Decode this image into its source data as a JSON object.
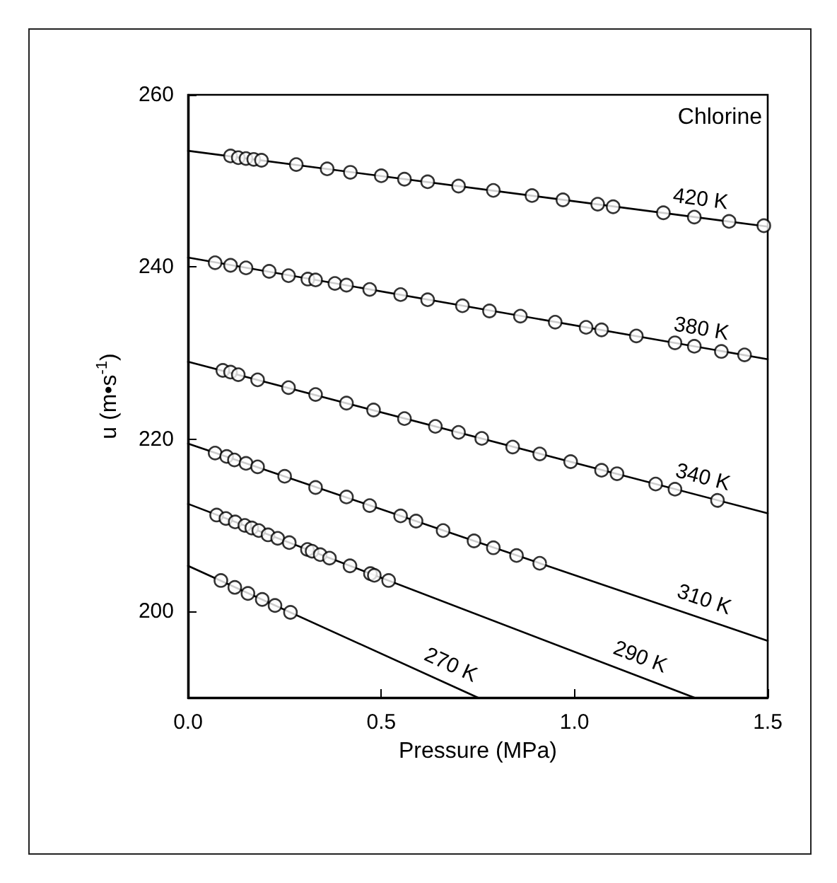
{
  "chart_data": {
    "type": "scatter",
    "xlabel": "Pressure (MPa)",
    "ylabel": "u (m•s$^{-1}$)",
    "xlim": [
      0,
      1.5
    ],
    "ylim": [
      190,
      260
    ],
    "xticks": [
      {
        "value": 0,
        "label": "0.0"
      },
      {
        "value": 0.5,
        "label": "0.5"
      },
      {
        "value": 1,
        "label": "1.0"
      },
      {
        "value": 1.5,
        "label": "1.5"
      }
    ],
    "yticks": [
      200,
      220,
      240,
      260
    ],
    "grid": false,
    "marker": "circle",
    "annotations": [
      "Chlorine"
    ],
    "series": [
      {
        "type": "line",
        "name": "420 K",
        "marker": "none",
        "color": "#000000",
        "x": [
          0,
          1.5
        ],
        "values": [
          253.5,
          244.7
        ]
      },
      {
        "type": "line",
        "name": "380 K",
        "marker": "none",
        "color": "#000000",
        "x": [
          0,
          1.5
        ],
        "values": [
          241.1,
          229.3
        ]
      },
      {
        "type": "line",
        "name": "340 K",
        "marker": "none",
        "color": "#000000",
        "x": [
          0,
          1.5
        ],
        "values": [
          229.0,
          211.4
        ]
      },
      {
        "type": "line",
        "name": "310 K",
        "marker": "none",
        "color": "#000000",
        "x": [
          0,
          1.5
        ],
        "values": [
          219.5,
          196.6
        ]
      },
      {
        "type": "line",
        "name": "290 K",
        "marker": "none",
        "color": "#000000",
        "x": [
          0,
          1.31
        ],
        "values": [
          212.5,
          190
        ]
      },
      {
        "type": "line",
        "name": "270 K",
        "marker": "none",
        "color": "#000000",
        "x": [
          0,
          0.75
        ],
        "values": [
          205.3,
          190
        ]
      },
      {
        "color": "#000000",
        "x": [
          0.11,
          0.13,
          0.15,
          0.17,
          0.19,
          0.28,
          0.36,
          0.42,
          0.5,
          0.56,
          0.62,
          0.7,
          0.79,
          0.89,
          0.97,
          1.06,
          1.1,
          1.23,
          1.31,
          1.4,
          1.49
        ],
        "values": [
          252.9,
          252.7,
          252.6,
          252.5,
          252.4,
          251.9,
          251.4,
          251.0,
          250.6,
          250.2,
          249.9,
          249.4,
          248.9,
          248.3,
          247.8,
          247.3,
          247.0,
          246.3,
          245.8,
          245.3,
          244.8
        ]
      },
      {
        "color": "#000000",
        "x": [
          0.07,
          0.11,
          0.15,
          0.21,
          0.26,
          0.31,
          0.33,
          0.38,
          0.41,
          0.47,
          0.55,
          0.62,
          0.71,
          0.78,
          0.86,
          0.95,
          1.03,
          1.07,
          1.16,
          1.26,
          1.31,
          1.38,
          1.44
        ],
        "values": [
          240.5,
          240.2,
          239.9,
          239.5,
          239.0,
          238.6,
          238.5,
          238.1,
          237.9,
          237.4,
          236.8,
          236.2,
          235.5,
          234.9,
          234.3,
          233.6,
          233.0,
          232.7,
          232.0,
          231.2,
          230.8,
          230.2,
          229.8
        ]
      },
      {
        "color": "#000000",
        "x": [
          0.09,
          0.11,
          0.13,
          0.18,
          0.26,
          0.33,
          0.41,
          0.48,
          0.56,
          0.64,
          0.7,
          0.76,
          0.84,
          0.91,
          0.99,
          1.07,
          1.11,
          1.21,
          1.26,
          1.37
        ],
        "values": [
          228.0,
          227.8,
          227.5,
          226.9,
          226.0,
          225.2,
          224.2,
          223.4,
          222.4,
          221.5,
          220.8,
          220.1,
          219.1,
          218.3,
          217.4,
          216.4,
          216.0,
          214.8,
          214.2,
          212.9
        ]
      },
      {
        "color": "#000000",
        "x": [
          0.07,
          0.1,
          0.12,
          0.15,
          0.18,
          0.25,
          0.33,
          0.41,
          0.47,
          0.55,
          0.59,
          0.66,
          0.74,
          0.79,
          0.85,
          0.91
        ],
        "values": [
          218.4,
          218.0,
          217.6,
          217.2,
          216.8,
          215.7,
          214.4,
          213.3,
          212.3,
          211.1,
          210.5,
          209.4,
          208.2,
          207.4,
          206.5,
          205.6
        ]
      },
      {
        "color": "#000000",
        "x": [
          0.074,
          0.098,
          0.122,
          0.147,
          0.165,
          0.183,
          0.207,
          0.232,
          0.262,
          0.309,
          0.321,
          0.342,
          0.366,
          0.419,
          0.472,
          0.482,
          0.519
        ],
        "values": [
          211.2,
          210.8,
          210.4,
          210.0,
          209.7,
          209.4,
          208.9,
          208.5,
          208.0,
          207.2,
          207.0,
          206.6,
          206.2,
          205.3,
          204.4,
          204.2,
          203.6
        ]
      },
      {
        "color": "#000000",
        "x": [
          0.085,
          0.121,
          0.155,
          0.192,
          0.225,
          0.265
        ],
        "values": [
          203.6,
          202.8,
          202.1,
          201.4,
          200.7,
          199.9
        ]
      }
    ]
  }
}
